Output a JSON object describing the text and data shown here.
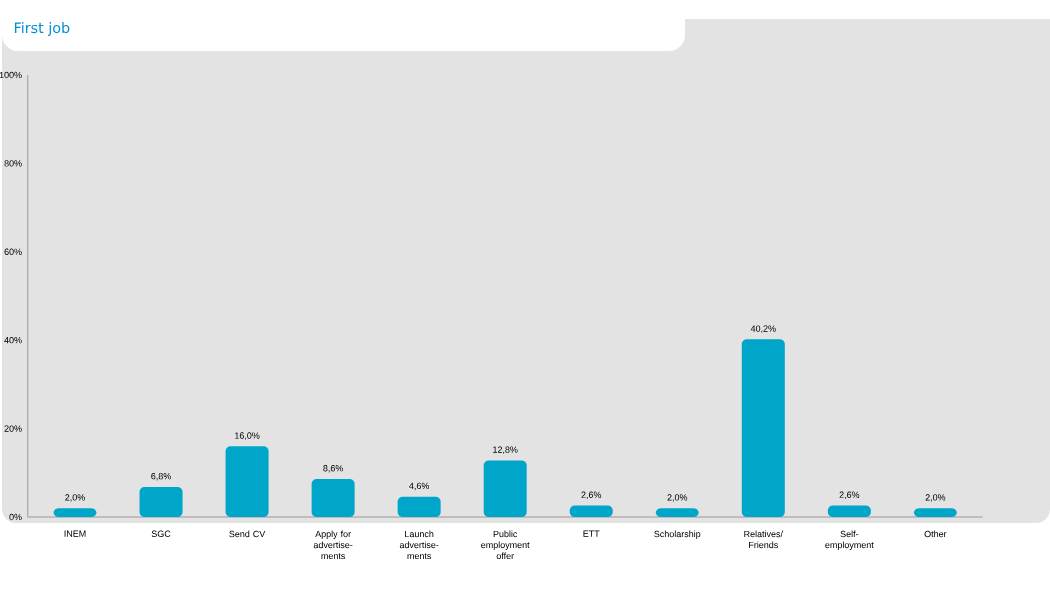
{
  "chart_data": {
    "type": "bar",
    "title": "First job",
    "categories": [
      "INEM",
      "SGC",
      "Send CV",
      "Apply for advertise-ments",
      "Launch advertise-ments",
      "Public employment offer",
      "ETT",
      "Scholarship",
      "Relatives/ Friends",
      "Self-employment",
      "Other"
    ],
    "values": [
      2.0,
      6.8,
      16.0,
      8.6,
      4.6,
      12.8,
      2.6,
      2.0,
      40.2,
      2.6,
      2.0
    ],
    "value_labels": [
      "2,0%",
      "6,8%",
      "16,0%",
      "8,6%",
      "4,6%",
      "12,8%",
      "2,6%",
      "2,0%",
      "40,2%",
      "2,6%",
      "2,0%"
    ],
    "color": "#00a6c9",
    "ylim": [
      0,
      100
    ],
    "yticks": [
      {
        "value": 0,
        "label": "0%"
      },
      {
        "value": 20,
        "label": "20%"
      },
      {
        "value": 40,
        "label": "40%"
      },
      {
        "value": 60,
        "label": "60%"
      },
      {
        "value": 80,
        "label": "80%"
      },
      {
        "value": 100,
        "label": "100%"
      }
    ],
    "grid": false
  }
}
